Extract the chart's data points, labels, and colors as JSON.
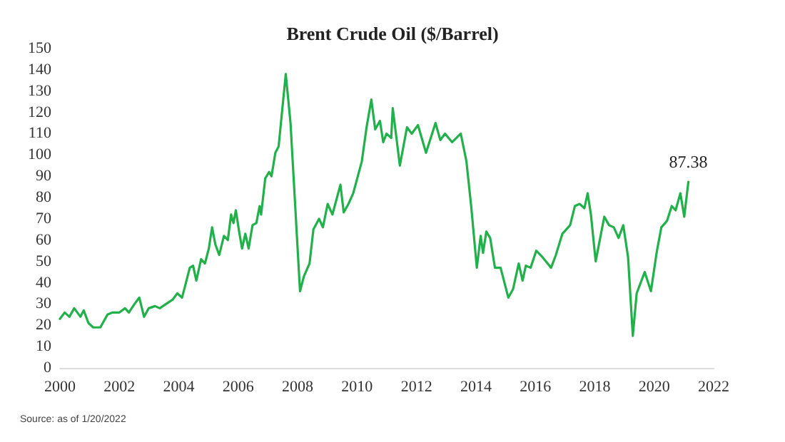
{
  "chart_data": {
    "type": "line",
    "title": "Brent Crude Oil ($/Barrel)",
    "xlim": [
      2000,
      2022
    ],
    "xticks": [
      2000,
      2002,
      2004,
      2006,
      2008,
      2010,
      2012,
      2014,
      2016,
      2018,
      2020,
      2022
    ],
    "ylim": [
      0,
      150
    ],
    "yticks": [
      0,
      10,
      20,
      30,
      40,
      50,
      60,
      70,
      80,
      90,
      100,
      110,
      120,
      130,
      140,
      150
    ],
    "grid": false,
    "marker": "none",
    "line_style": "solid",
    "annotations": [
      {
        "text": "87.38",
        "x": 2021.15,
        "y": 87.38
      },
      "Source: as of 1/20/2022"
    ],
    "series": [
      {
        "color": "#22b04b",
        "x": [
          2000.0,
          2000.16,
          2000.32,
          2000.48,
          2000.69,
          2000.8,
          2000.96,
          2001.12,
          2001.36,
          2001.6,
          2001.76,
          2002.0,
          2002.19,
          2002.32,
          2002.51,
          2002.67,
          2002.83,
          2002.99,
          2003.2,
          2003.36,
          2003.57,
          2003.79,
          2003.95,
          2004.11,
          2004.24,
          2004.37,
          2004.48,
          2004.59,
          2004.75,
          2004.88,
          2005.01,
          2005.12,
          2005.23,
          2005.36,
          2005.52,
          2005.65,
          2005.76,
          2005.84,
          2005.92,
          2006.03,
          2006.13,
          2006.24,
          2006.35,
          2006.48,
          2006.61,
          2006.72,
          2006.77,
          2006.91,
          2007.04,
          2007.12,
          2007.25,
          2007.36,
          2007.6,
          2007.76,
          2008.08,
          2008.21,
          2008.4,
          2008.53,
          2008.72,
          2008.85,
          2009.01,
          2009.17,
          2009.44,
          2009.55,
          2009.71,
          2009.87,
          2010.16,
          2010.32,
          2010.48,
          2010.61,
          2010.77,
          2010.88,
          2010.99,
          2011.15,
          2011.2,
          2011.44,
          2011.68,
          2011.84,
          2012.05,
          2012.32,
          2012.64,
          2012.8,
          2012.96,
          2013.2,
          2013.49,
          2013.68,
          2013.84,
          2014.03,
          2014.16,
          2014.24,
          2014.35,
          2014.48,
          2014.64,
          2014.83,
          2015.09,
          2015.25,
          2015.44,
          2015.57,
          2015.68,
          2015.84,
          2016.03,
          2016.24,
          2016.53,
          2016.69,
          2016.91,
          2017.17,
          2017.33,
          2017.49,
          2017.65,
          2017.76,
          2017.87,
          2018.03,
          2018.32,
          2018.48,
          2018.64,
          2018.8,
          2018.96,
          2019.12,
          2019.28,
          2019.41,
          2019.68,
          2019.89,
          2020.08,
          2020.24,
          2020.43,
          2020.59,
          2020.72,
          2020.88,
          2021.01,
          2021.15
        ],
        "values": [
          23,
          26,
          24,
          28,
          24,
          27,
          21,
          19,
          19,
          25,
          26,
          26,
          28,
          26,
          30,
          33,
          24,
          28,
          29,
          28,
          30,
          32,
          35,
          33,
          40,
          47,
          48,
          41,
          51,
          49,
          56,
          66,
          58,
          53,
          62,
          60,
          72,
          68,
          74,
          64,
          56,
          63,
          56,
          67,
          68,
          76,
          72,
          89,
          92,
          90,
          101,
          104,
          138,
          115,
          36,
          43,
          49,
          65,
          70,
          66,
          77,
          72,
          86,
          73,
          77,
          82,
          97,
          113,
          126,
          112,
          116,
          106,
          110,
          108,
          122,
          95,
          113,
          110,
          114,
          101,
          115,
          107,
          110,
          106,
          110,
          97,
          76,
          47,
          62,
          54,
          64,
          61,
          47,
          47,
          33,
          37,
          49,
          41,
          48,
          47,
          55,
          52,
          47,
          53,
          63,
          67,
          76,
          77,
          75,
          82,
          72,
          50,
          71,
          67,
          66,
          61,
          67,
          52,
          15,
          35,
          45,
          36,
          54,
          66,
          69,
          76,
          74,
          82,
          71,
          87.38
        ]
      }
    ]
  }
}
